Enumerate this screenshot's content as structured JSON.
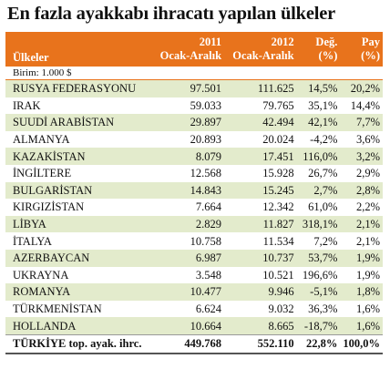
{
  "header": {
    "title": "En fazla ayakkabı ihracatı yapılan ülkeler"
  },
  "table": {
    "columns": [
      [
        "Ülkeler"
      ],
      [
        "2011",
        "Ocak-Aralık"
      ],
      [
        "2012",
        "Ocak-Aralık"
      ],
      [
        "Değ.",
        "(%)"
      ],
      [
        "Pay",
        "(%)"
      ]
    ],
    "unit": "Birim: 1.000 $",
    "rows": [
      [
        "RUSYA FEDERASYONU",
        "97.501",
        "111.625",
        "14,5%",
        "20,2%"
      ],
      [
        "IRAK",
        "59.033",
        "79.765",
        "35,1%",
        "14,4%"
      ],
      [
        "SUUDİ ARABİSTAN",
        "29.897",
        "42.494",
        "42,1%",
        "7,7%"
      ],
      [
        "ALMANYA",
        "20.893",
        "20.024",
        "-4,2%",
        "3,6%"
      ],
      [
        "KAZAKİSTAN",
        "8.079",
        "17.451",
        "116,0%",
        "3,2%"
      ],
      [
        "İNGİLTERE",
        "12.568",
        "15.928",
        "26,7%",
        "2,9%"
      ],
      [
        "BULGARİSTAN",
        "14.843",
        "15.245",
        "2,7%",
        "2,8%"
      ],
      [
        "KIRGIZİSTAN",
        "7.664",
        "12.342",
        "61,0%",
        "2,2%"
      ],
      [
        "LİBYA",
        "2.829",
        "11.827",
        "318,1%",
        "2,1%"
      ],
      [
        "İTALYA",
        "10.758",
        "11.534",
        "7,2%",
        "2,1%"
      ],
      [
        "AZERBAYCAN",
        "6.987",
        "10.737",
        "53,7%",
        "1,9%"
      ],
      [
        "UKRAYNA",
        "3.548",
        "10.521",
        "196,6%",
        "1,9%"
      ],
      [
        "ROMANYA",
        "10.477",
        "9.946",
        "-5,1%",
        "1,8%"
      ],
      [
        "TÜRKMENİSTAN",
        "6.624",
        "9.032",
        "36,3%",
        "1,6%"
      ],
      [
        "HOLLANDA",
        "10.664",
        "8.665",
        "-18,7%",
        "1,6%"
      ]
    ],
    "total": [
      "TÜRKİYE top. ayak. ihrc.",
      "449.768",
      "552.110",
      "22,8%",
      "100,0%"
    ]
  }
}
